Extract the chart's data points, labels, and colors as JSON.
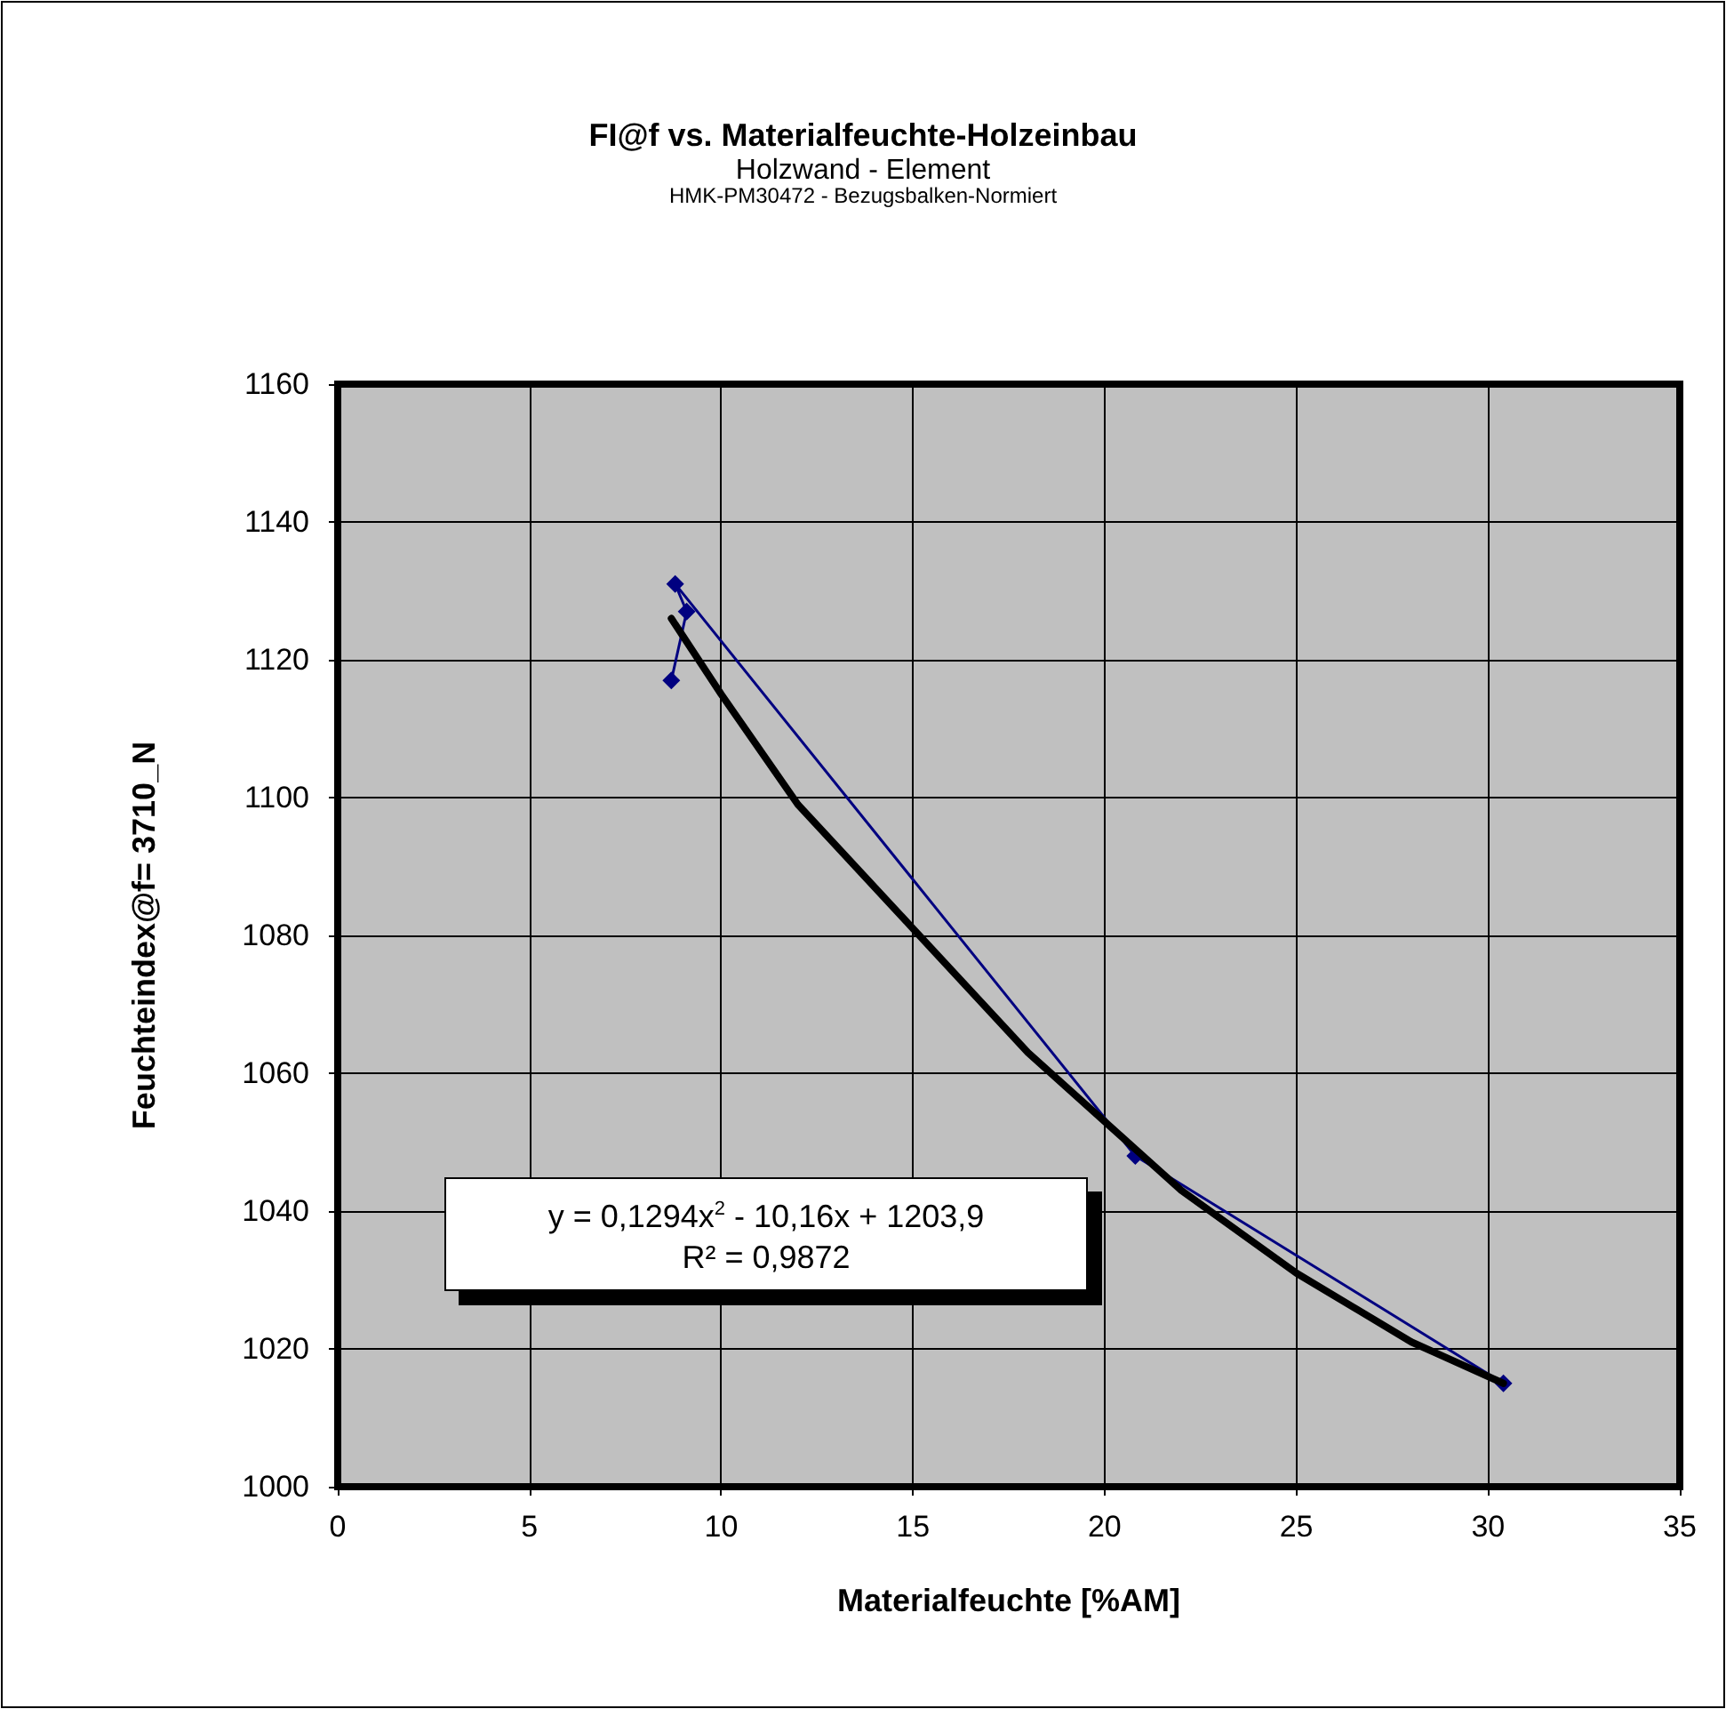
{
  "chart_data": {
    "type": "line",
    "title": "FI@f vs. Materialfeuchte-Holzeinbau",
    "subtitle": "Holzwand - Element",
    "annotations": [
      "HMK-PM30472 - Bezugsbalken-Normiert",
      "y = 0,1294x$^{2}$ - 10,16x + 1203,9",
      "R² = 0,9872"
    ],
    "xlabel": "Materialfeuchte [%AM]",
    "ylabel": "Feuchteindex@f= 3710_N",
    "xlim": [
      0,
      35
    ],
    "xticks": [
      0,
      5,
      10,
      15,
      20,
      25,
      30,
      35
    ],
    "ylim": [
      1000,
      1160
    ],
    "yticks": [
      1000,
      1020,
      1040,
      1060,
      1080,
      1100,
      1120,
      1140,
      1160
    ],
    "grid": true,
    "marker": "diamond",
    "series": [
      {
        "color": "#000080",
        "x": [
          8.7,
          9.1,
          8.8,
          20.8,
          30.4
        ],
        "values": [
          1117,
          1127,
          1131,
          1048,
          1015
        ]
      },
      {
        "color": "#000000",
        "marker": "none",
        "x": [
          8.7,
          10,
          12,
          15,
          18,
          20,
          22,
          25,
          28,
          30.4
        ],
        "values": [
          1126,
          1115,
          1099,
          1081,
          1063,
          1053,
          1043,
          1031,
          1021,
          1015
        ]
      }
    ]
  }
}
